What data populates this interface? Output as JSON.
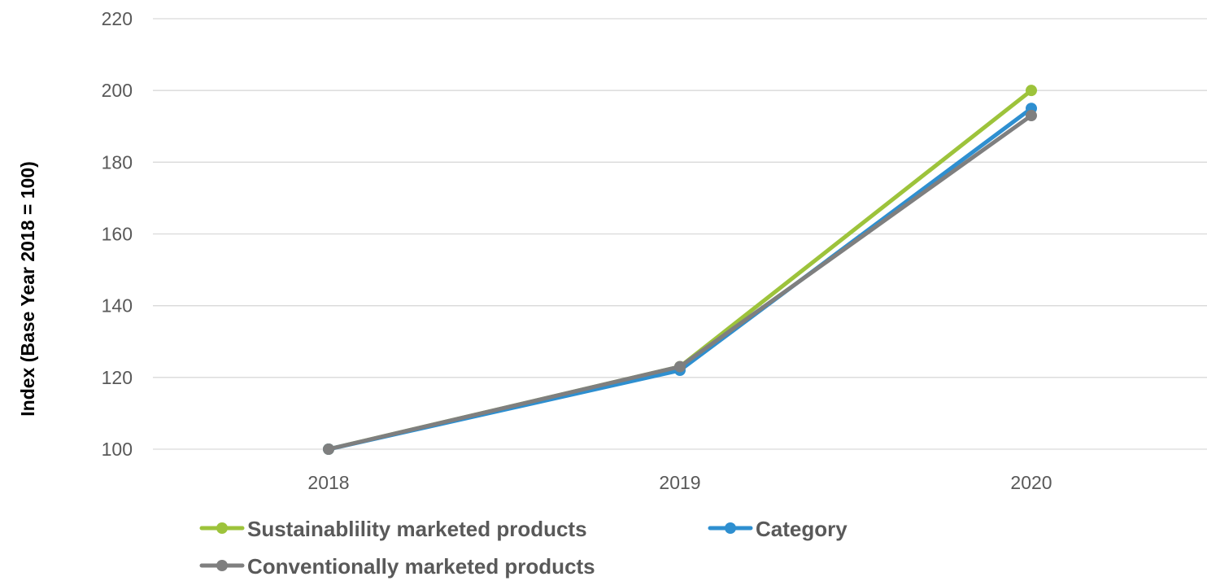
{
  "chart_data": {
    "type": "line",
    "title": "",
    "xlabel": "",
    "ylabel": "Index (Base Year 2018 = 100)",
    "categories": [
      "2018",
      "2019",
      "2020"
    ],
    "ylim": [
      100,
      220
    ],
    "yticks": [
      100,
      120,
      140,
      160,
      180,
      200,
      220
    ],
    "grid": true,
    "legend_position": "bottom",
    "series": [
      {
        "name": "Sustainablility marketed products",
        "values": [
          100,
          123,
          200
        ],
        "color": "#9DC33B"
      },
      {
        "name": "Category",
        "values": [
          100,
          122,
          195
        ],
        "color": "#2E8FD0"
      },
      {
        "name": "Conventionally marketed products",
        "values": [
          100,
          123,
          193
        ],
        "color": "#7F7F7F"
      }
    ]
  }
}
